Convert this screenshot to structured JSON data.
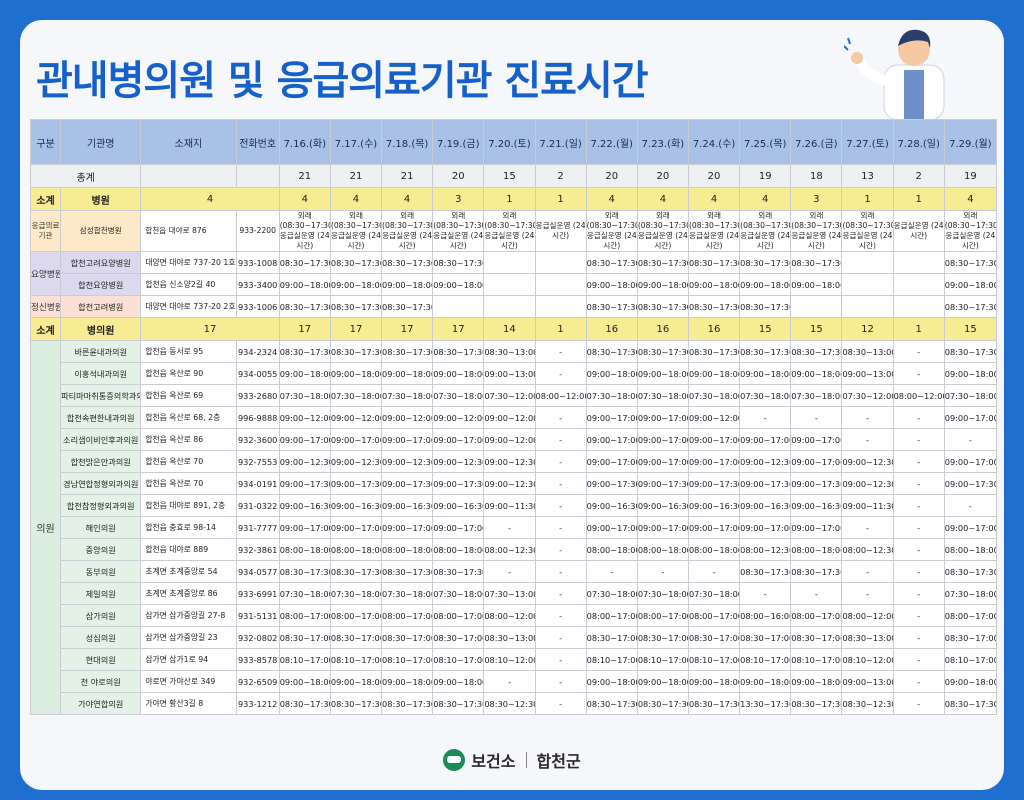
{
  "title": "관내병의원 및 응급의료기관 진료시간",
  "footer": {
    "org": "보건소",
    "county": "합천군"
  },
  "columns": [
    "구분",
    "기관명",
    "소재지",
    "전화번호",
    "7.16.(화)",
    "7.17.(수)",
    "7.18.(목)",
    "7.19.(금)",
    "7.20.(토)",
    "7.21.(일)",
    "7.22.(월)",
    "7.23.(화)",
    "7.24.(수)",
    "7.25.(목)",
    "7.26.(금)",
    "7.27.(토)",
    "7.28.(일)",
    "7.29.(월)"
  ],
  "total": {
    "label": "총계",
    "values": [
      "21",
      "21",
      "21",
      "20",
      "15",
      "2",
      "20",
      "20",
      "20",
      "19",
      "18",
      "13",
      "2",
      "19"
    ]
  },
  "hospital_subtotal": {
    "label": "소계",
    "kind": "병원",
    "count": "4",
    "values": [
      "4",
      "4",
      "4",
      "3",
      "1",
      "1",
      "4",
      "4",
      "4",
      "4",
      "3",
      "1",
      "1",
      "4"
    ]
  },
  "er": {
    "category": "응급의료기관",
    "name": "삼성합천병원",
    "address": "합천읍 대야로 876",
    "phone": "933-2200",
    "values": [
      "외래 (08:30~17:30) 응급실운영 (24시간)",
      "외래 (08:30~17:30) 응급실운영 (24시간)",
      "외래 (08:30~17:30) 응급실운영 (24시간)",
      "외래 (08:30~17:30) 응급실운영 (24시간)",
      "외래 (08:30~17:30) 응급실운영 (24시간)",
      "응급실운영 (24시간)",
      "외래 (08:30~17:30) 응급실운영 (24시간)",
      "외래 (08:30~17:30) 응급실운영 (24시간)",
      "외래 (08:30~17:30) 응급실운영 (24시간)",
      "외래 (08:30~17:30) 응급실운영 (24시간)",
      "외래 (08:30~17:30) 응급실운영 (24시간)",
      "외래 (08:30~17:30) 응급실운영 (24시간)",
      "응급실운영 (24시간)",
      "외래 (08:30~17:30) 응급실운영 (24시간)"
    ]
  },
  "nursing": {
    "category": "요양병원",
    "rows": [
      {
        "name": "합천고려요양병원",
        "address": "대양면 대야로 737-20 1호",
        "phone": "933-1008",
        "values": [
          "08:30~17:30",
          "08:30~17:30",
          "08:30~17:30",
          "08:30~17:30",
          "",
          "",
          "08:30~17:30",
          "08:30~17:30",
          "08:30~17:30",
          "08:30~17:30",
          "08:30~17:30",
          "",
          "",
          "08:30~17:30"
        ]
      },
      {
        "name": "합천요양병원",
        "address": "합천읍 신소양2길 40",
        "phone": "933-3400",
        "values": [
          "09:00~18:00",
          "09:00~18:00",
          "09:00~18:00",
          "09:00~18:00",
          "",
          "",
          "09:00~18:00",
          "09:00~18:00",
          "09:00~18:00",
          "09:00~18:00",
          "09:00~18:00",
          "",
          "",
          "09:00~18:00"
        ]
      }
    ]
  },
  "mental": {
    "category": "정신병원",
    "name": "합천고려병원",
    "address": "대양면 대야로 737-20 2호",
    "phone": "933-1006",
    "values": [
      "08:30~17:30",
      "08:30~17:30",
      "08:30~17:30",
      "",
      "",
      "",
      "08:30~17:30",
      "08:30~17:30",
      "08:30~17:30",
      "08:30~17:30",
      "",
      "",
      "",
      "08:30~17:30"
    ]
  },
  "clinic_subtotal": {
    "label": "소계",
    "kind": "병의원",
    "count": "17",
    "values": [
      "17",
      "17",
      "17",
      "17",
      "14",
      "1",
      "16",
      "16",
      "16",
      "15",
      "15",
      "12",
      "1",
      "15"
    ]
  },
  "clinics": {
    "category": "의원",
    "rows": [
      {
        "name": "바른윤내과의원",
        "address": "합천읍 동서로 95",
        "phone": "934-2324",
        "values": [
          "08:30~17:30",
          "08:30~17:30",
          "08:30~17:30",
          "08:30~17:30",
          "08:30~13:00",
          "-",
          "08:30~17:30",
          "08:30~17:30",
          "08:30~17:30",
          "08:30~17:30",
          "08:30~17:30",
          "08:30~13:00",
          "-",
          "08:30~17:30"
        ]
      },
      {
        "name": "이홍석내과의원",
        "address": "합천읍 옥산로 90",
        "phone": "934-0055",
        "values": [
          "09:00~18:00",
          "09:00~18:00",
          "09:00~18:00",
          "09:00~18:00",
          "09:00~13:00",
          "-",
          "09:00~18:00",
          "09:00~18:00",
          "09:00~18:00",
          "09:00~18:00",
          "09:00~18:00",
          "09:00~13:00",
          "-",
          "09:00~18:00"
        ]
      },
      {
        "name": "파티마마취통증의학과의원",
        "address": "합천읍 옥산로 69",
        "phone": "933-2680",
        "values": [
          "07:30~18:00",
          "07:30~18:00",
          "07:30~18:00",
          "07:30~18:00",
          "07:30~12:00",
          "08:00~12:00",
          "07:30~18:00",
          "07:30~18:00",
          "07:30~18:00",
          "07:30~18:00",
          "07:30~18:00",
          "07:30~12:00",
          "08:00~12:00",
          "07:30~18:00"
        ]
      },
      {
        "name": "합천속편한내과의원",
        "address": "합천읍 옥산로 68, 2층",
        "phone": "996-9888",
        "values": [
          "09:00~12:00",
          "09:00~12:00",
          "09:00~12:00",
          "09:00~12:00",
          "09:00~12:00",
          "-",
          "09:00~17:00",
          "09:00~17:00",
          "09:00~12:00",
          "-",
          "-",
          "-",
          "-",
          "09:00~17:00"
        ]
      },
      {
        "name": "소리샘이비인후과의원",
        "address": "합천읍 옥산로 86",
        "phone": "932-3600",
        "values": [
          "09:00~17:00",
          "09:00~17:00",
          "09:00~17:00",
          "09:00~17:00",
          "09:00~12:00",
          "-",
          "09:00~17:00",
          "09:00~17:00",
          "09:00~17:00",
          "09:00~17:00",
          "09:00~17:00",
          "-",
          "-",
          "-"
        ]
      },
      {
        "name": "합천밝은안과의원",
        "address": "합천읍 옥산로 70",
        "phone": "932-7553",
        "values": [
          "09:00~12:30",
          "09:00~12:30",
          "09:00~12:30",
          "09:00~12:30",
          "09:00~12:30",
          "-",
          "09:00~17:00",
          "09:00~17:00",
          "09:00~17:00",
          "09:00~12:30",
          "09:00~17:00",
          "09:00~12:30",
          "-",
          "09:00~17:00"
        ]
      },
      {
        "name": "경남연합정형외과의원",
        "address": "합천읍 옥산로 70",
        "phone": "934-0191",
        "values": [
          "09:00~17:30",
          "09:00~17:30",
          "09:00~17:30",
          "09:00~17:30",
          "09:00~12:30",
          "-",
          "09:00~17:30",
          "09:00~17:30",
          "09:00~17:30",
          "09:00~17:30",
          "09:00~17:30",
          "09:00~12:30",
          "-",
          "09:00~17:30"
        ]
      },
      {
        "name": "합천참정형외과의원",
        "address": "합천읍 대야로 891, 2층",
        "phone": "931-0322",
        "values": [
          "09:00~16:30",
          "09:00~16:30",
          "09:00~16:30",
          "09:00~16:30",
          "09:00~11:30",
          "-",
          "09:00~16:30",
          "09:00~16:30",
          "09:00~16:30",
          "09:00~16:30",
          "09:00~16:30",
          "09:00~11:30",
          "-",
          "-"
        ]
      },
      {
        "name": "해인의원",
        "address": "합천읍 충효로 98-14",
        "phone": "931-7777",
        "values": [
          "09:00~17:00",
          "09:00~17:00",
          "09:00~17:00",
          "09:00~17:00",
          "-",
          "-",
          "09:00~17:00",
          "09:00~17:00",
          "09:00~17:00",
          "09:00~17:00",
          "09:00~17:00",
          "-",
          "-",
          "09:00~17:00"
        ]
      },
      {
        "name": "중앙의원",
        "address": "합천읍 대야로 889",
        "phone": "932-3861",
        "values": [
          "08:00~18:00",
          "08:00~18:00",
          "08:00~18:00",
          "08:00~18:00",
          "08:00~12:30",
          "-",
          "08:00~18:00",
          "08:00~18:00",
          "08:00~18:00",
          "08:00~12:30",
          "08:00~18:00",
          "08:00~12:30",
          "-",
          "08:00~18:00"
        ]
      },
      {
        "name": "동부의원",
        "address": "초계면 초계중앙로 54",
        "phone": "934-0577",
        "values": [
          "08:30~17:30",
          "08:30~17:30",
          "08:30~17:30",
          "08:30~17:30",
          "-",
          "-",
          "-",
          "-",
          "-",
          "08:30~17:30",
          "08:30~17:30",
          "-",
          "-",
          "08:30~17:30"
        ]
      },
      {
        "name": "제일의원",
        "address": "초계면 초계중앙로 86",
        "phone": "933-6991",
        "values": [
          "07:30~18:00",
          "07:30~18:00",
          "07:30~18:00",
          "07:30~18:00",
          "07:30~13:00",
          "-",
          "07:30~18:00",
          "07:30~18:00",
          "07:30~18:00",
          "-",
          "-",
          "-",
          "-",
          "07:30~18:00"
        ]
      },
      {
        "name": "삼가의원",
        "address": "삼가면 삼가중앙길 27-8",
        "phone": "931-5131",
        "values": [
          "08:00~17:00",
          "08:00~17:00",
          "08:00~17:00",
          "08:00~17:00",
          "08:00~12:00",
          "-",
          "08:00~17:00",
          "08:00~17:00",
          "08:00~17:00",
          "08:00~16:00",
          "08:00~17:00",
          "08:00~12:00",
          "-",
          "08:00~17:00"
        ]
      },
      {
        "name": "성심의원",
        "address": "삼가면 삼가중앙길 23",
        "phone": "932-0802",
        "values": [
          "08:30~17:00",
          "08:30~17:00",
          "08:30~17:00",
          "08:30~17:00",
          "08:30~13:00",
          "-",
          "08:30~17:00",
          "08:30~17:00",
          "08:30~17:00",
          "08:30~17:00",
          "08:30~17:00",
          "08:30~13:00",
          "-",
          "08:30~17:00"
        ]
      },
      {
        "name": "현대의원",
        "address": "삼가면 삼가1로 94",
        "phone": "933-8578",
        "values": [
          "08:10~17:00",
          "08:10~17:00",
          "08:10~17:00",
          "08:10~17:00",
          "08:10~12:00",
          "-",
          "08:10~17:00",
          "08:10~17:00",
          "08:10~17:00",
          "08:10~17:00",
          "08:10~17:00",
          "08:10~12:00",
          "-",
          "08:10~17:00"
        ]
      },
      {
        "name": "천 야로의원",
        "address": "야로면 가야산로 349",
        "phone": "932-6509",
        "values": [
          "09:00~18:00",
          "09:00~18:00",
          "09:00~18:00",
          "09:00~18:00",
          "-",
          "-",
          "09:00~18:00",
          "09:00~18:00",
          "09:00~18:00",
          "09:00~18:00",
          "09:00~18:00",
          "09:00~13:00",
          "-",
          "09:00~18:00"
        ]
      },
      {
        "name": "가야연합의원",
        "address": "가야면 황산3길 8",
        "phone": "933-1212",
        "values": [
          "08:30~17:30",
          "08:30~17:30",
          "08:30~17:30",
          "08:30~17:30",
          "08:30~12:30",
          "-",
          "08:30~17:30",
          "08:30~17:30",
          "08:30~17:30",
          "13:30~17:30",
          "08:30~17:30",
          "08:30~12:30",
          "-",
          "08:30~17:30"
        ]
      }
    ]
  }
}
